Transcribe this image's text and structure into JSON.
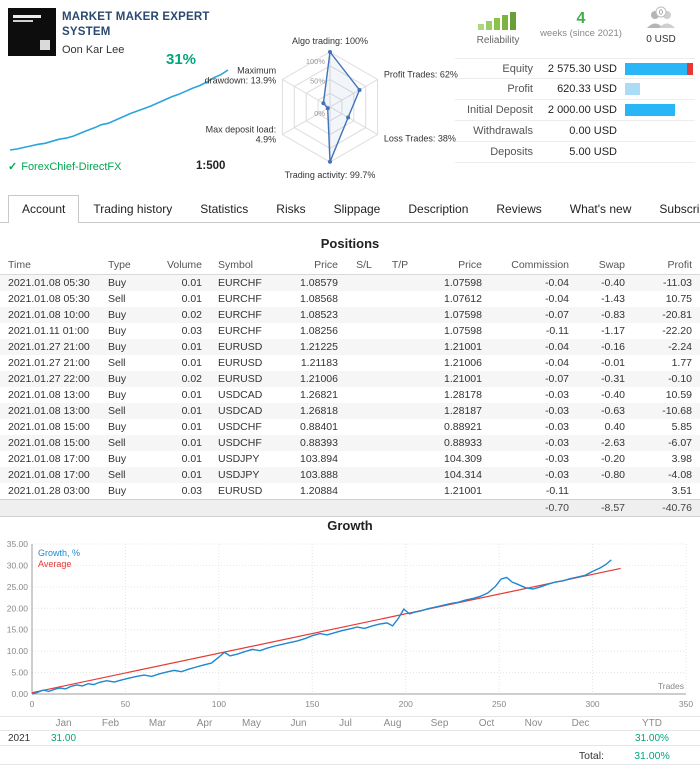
{
  "colors": {
    "blue": "#29b6f6",
    "pale": "#aadcf5",
    "red": "#e53935",
    "growth": "#1e88d2",
    "spark": "#2aa5dc",
    "radar": "#4272b7",
    "green": "#00a651",
    "teal": "#00a67c",
    "pos": "#1a56b8",
    "neg": "#c80000"
  },
  "header": {
    "title": "MARKET MAKER EXPERT SYSTEM",
    "author": "Oon Kar Lee",
    "growth_badge": "31%",
    "broker": "ForexChief-DirectFX",
    "broker_check": "✓",
    "leverage": "1:500",
    "reliability_label": "Reliability",
    "age_value": "4",
    "age_label": "weeks (since 2021)",
    "price_label": "0 USD",
    "subscribers_badge": "0",
    "sparkline": [
      0,
      0.4,
      1,
      1.6,
      2.2,
      2.6,
      3.4,
      4.2,
      4.6,
      5.4,
      6.5,
      7.6,
      8.6,
      9.8,
      10.4,
      11.6,
      12.8,
      14,
      15,
      16,
      17,
      18.2,
      19.4,
      20.6,
      21.6,
      22.8,
      24,
      25,
      26.4,
      28,
      29.2,
      31
    ],
    "stats": [
      {
        "label": "Equity",
        "value": "2 575.30 USD",
        "bars": [
          [
            "blue",
            88
          ],
          [
            "red",
            9
          ]
        ]
      },
      {
        "label": "Profit",
        "value": "620.33 USD",
        "bars": [
          [
            "pale",
            21
          ]
        ]
      },
      {
        "label": "Initial Deposit",
        "value": "2 000.00 USD",
        "bars": [
          [
            "blue",
            72
          ]
        ]
      },
      {
        "label": "Withdrawals",
        "value": "0.00 USD",
        "bars": []
      },
      {
        "label": "Deposits",
        "value": "5.00 USD",
        "bars": []
      }
    ]
  },
  "radar": {
    "axes": [
      {
        "lines": [
          "Algo trading: 100%"
        ],
        "value": 100
      },
      {
        "lines": [
          "Profit Trades: 62%"
        ],
        "value": 62
      },
      {
        "lines": [
          "Loss Trades: 38%"
        ],
        "value": 38
      },
      {
        "lines": [
          "Trading activity: 99.7%"
        ],
        "value": 99.7
      },
      {
        "lines": [
          "Max deposit load:",
          "4.9%"
        ],
        "value": 4.9
      },
      {
        "lines": [
          "Maximum",
          "drawdown: 13.9%"
        ],
        "value": 13.9
      }
    ],
    "ring_labels": [
      "100%",
      "50%",
      "0%"
    ]
  },
  "tabs": {
    "active": "Account",
    "items": [
      "Account",
      "Trading history",
      "Statistics",
      "Risks",
      "Slippage",
      "Description",
      "Reviews",
      "What's new",
      "Subscribers"
    ]
  },
  "positions": {
    "title": "Positions",
    "columns": [
      "Time",
      "Type",
      "Volume",
      "Symbol",
      "Price",
      "S/L",
      "T/P",
      "Price",
      "Commission",
      "Swap",
      "Profit"
    ],
    "rows": [
      [
        "2021.01.08 05:30",
        "Buy",
        "0.01",
        "EURCHF",
        "1.08579",
        "",
        "",
        "1.07598",
        "-0.04",
        "-0.40",
        "-11.03"
      ],
      [
        "2021.01.08 05:30",
        "Sell",
        "0.01",
        "EURCHF",
        "1.08568",
        "",
        "",
        "1.07612",
        "-0.04",
        "-1.43",
        "10.75"
      ],
      [
        "2021.01.08 10:00",
        "Buy",
        "0.02",
        "EURCHF",
        "1.08523",
        "",
        "",
        "1.07598",
        "-0.07",
        "-0.83",
        "-20.81"
      ],
      [
        "2021.01.11 01:00",
        "Buy",
        "0.03",
        "EURCHF",
        "1.08256",
        "",
        "",
        "1.07598",
        "-0.11",
        "-1.17",
        "-22.20"
      ],
      [
        "2021.01.27 21:00",
        "Buy",
        "0.01",
        "EURUSD",
        "1.21225",
        "",
        "",
        "1.21001",
        "-0.04",
        "-0.16",
        "-2.24"
      ],
      [
        "2021.01.27 21:00",
        "Sell",
        "0.01",
        "EURUSD",
        "1.21183",
        "",
        "",
        "1.21006",
        "-0.04",
        "-0.01",
        "1.77"
      ],
      [
        "2021.01.27 22:00",
        "Buy",
        "0.02",
        "EURUSD",
        "1.21006",
        "",
        "",
        "1.21001",
        "-0.07",
        "-0.31",
        "-0.10"
      ],
      [
        "2021.01.08 13:00",
        "Buy",
        "0.01",
        "USDCAD",
        "1.26821",
        "",
        "",
        "1.28178",
        "-0.03",
        "-0.40",
        "10.59"
      ],
      [
        "2021.01.08 13:00",
        "Sell",
        "0.01",
        "USDCAD",
        "1.26818",
        "",
        "",
        "1.28187",
        "-0.03",
        "-0.63",
        "-10.68"
      ],
      [
        "2021.01.08 15:00",
        "Buy",
        "0.01",
        "USDCHF",
        "0.88401",
        "",
        "",
        "0.88921",
        "-0.03",
        "0.40",
        "5.85"
      ],
      [
        "2021.01.08 15:00",
        "Sell",
        "0.01",
        "USDCHF",
        "0.88393",
        "",
        "",
        "0.88933",
        "-0.03",
        "-2.63",
        "-6.07"
      ],
      [
        "2021.01.08 17:00",
        "Buy",
        "0.01",
        "USDJPY",
        "103.894",
        "",
        "",
        "104.309",
        "-0.03",
        "-0.20",
        "3.98"
      ],
      [
        "2021.01.08 17:00",
        "Sell",
        "0.01",
        "USDJPY",
        "103.888",
        "",
        "",
        "104.314",
        "-0.03",
        "-0.80",
        "-4.08"
      ],
      [
        "2021.01.28 03:00",
        "Buy",
        "0.03",
        "EURUSD",
        "1.20884",
        "",
        "",
        "1.21001",
        "-0.11",
        "",
        "3.51"
      ]
    ],
    "total_row": [
      "",
      "",
      "",
      "",
      "",
      "",
      "",
      "",
      "-0.70",
      "-8.57",
      "-40.76"
    ]
  },
  "growth": {
    "title": "Growth",
    "type": "line",
    "legend": [
      "Growth, %",
      "Average"
    ],
    "ylim": [
      0,
      35
    ],
    "yticks": [
      "35.00",
      "30.00",
      "25.00",
      "20.00",
      "15.00",
      "10.00",
      "5.00",
      "0.00"
    ],
    "xticks": [
      0,
      50,
      100,
      150,
      200,
      250,
      300,
      350
    ],
    "xlabel": "Trades",
    "series": [
      [
        0,
        0
      ],
      [
        3,
        0.4
      ],
      [
        6,
        0.9
      ],
      [
        9,
        0.6
      ],
      [
        12,
        1.1
      ],
      [
        15,
        1.4
      ],
      [
        18,
        1.2
      ],
      [
        21,
        1.8
      ],
      [
        24,
        2.1
      ],
      [
        27,
        1.9
      ],
      [
        30,
        2.4
      ],
      [
        33,
        2.2
      ],
      [
        36,
        2.7
      ],
      [
        40,
        3.1
      ],
      [
        44,
        2.8
      ],
      [
        48,
        3.3
      ],
      [
        52,
        3.7
      ],
      [
        56,
        4.1
      ],
      [
        60,
        4.4
      ],
      [
        64,
        4.1
      ],
      [
        68,
        4.7
      ],
      [
        72,
        5.1
      ],
      [
        76,
        5.5
      ],
      [
        80,
        5.2
      ],
      [
        84,
        5.8
      ],
      [
        88,
        6.3
      ],
      [
        92,
        6.8
      ],
      [
        96,
        7.2
      ],
      [
        100,
        8.6
      ],
      [
        103,
        9.7
      ],
      [
        106,
        8.9
      ],
      [
        110,
        9.3
      ],
      [
        114,
        9.9
      ],
      [
        118,
        10.4
      ],
      [
        122,
        10.1
      ],
      [
        126,
        10.7
      ],
      [
        130,
        11.2
      ],
      [
        134,
        11.6
      ],
      [
        138,
        12.0
      ],
      [
        142,
        12.4
      ],
      [
        146,
        12.9
      ],
      [
        150,
        13.6
      ],
      [
        154,
        14.1
      ],
      [
        158,
        13.8
      ],
      [
        162,
        14.3
      ],
      [
        166,
        14.8
      ],
      [
        170,
        15.2
      ],
      [
        174,
        15.6
      ],
      [
        178,
        15.3
      ],
      [
        182,
        15.9
      ],
      [
        186,
        16.3
      ],
      [
        190,
        16.6
      ],
      [
        193,
        15.9
      ],
      [
        196,
        17.6
      ],
      [
        199,
        19.8
      ],
      [
        202,
        18.7
      ],
      [
        205,
        19.1
      ],
      [
        208,
        19.4
      ],
      [
        212,
        19.9
      ],
      [
        216,
        20.3
      ],
      [
        220,
        20.7
      ],
      [
        224,
        21.1
      ],
      [
        228,
        21.4
      ],
      [
        232,
        21.9
      ],
      [
        236,
        22.3
      ],
      [
        240,
        22.8
      ],
      [
        244,
        23.6
      ],
      [
        248,
        25.1
      ],
      [
        251,
        26.8
      ],
      [
        254,
        27.2
      ],
      [
        257,
        26.1
      ],
      [
        260,
        25.6
      ],
      [
        264,
        24.8
      ],
      [
        268,
        24.5
      ],
      [
        272,
        25.0
      ],
      [
        276,
        25.6
      ],
      [
        280,
        26.1
      ],
      [
        284,
        26.4
      ],
      [
        288,
        26.9
      ],
      [
        292,
        27.3
      ],
      [
        296,
        27.7
      ],
      [
        300,
        28.6
      ],
      [
        304,
        29.4
      ],
      [
        307,
        30.2
      ],
      [
        310,
        31.3
      ]
    ],
    "average": [
      [
        0,
        0.3
      ],
      [
        315,
        29.3
      ]
    ],
    "months": [
      "Jan",
      "Feb",
      "Mar",
      "Apr",
      "May",
      "Jun",
      "Jul",
      "Aug",
      "Sep",
      "Oct",
      "Nov",
      "Dec"
    ],
    "ytd_label": "YTD",
    "year": "2021",
    "monthly": [
      "31.00",
      "",
      "",
      "",
      "",
      "",
      "",
      "",
      "",
      "",
      "",
      ""
    ],
    "ytd_value": "31.00%",
    "total_label": "Total:",
    "total_value": "31.00%"
  }
}
